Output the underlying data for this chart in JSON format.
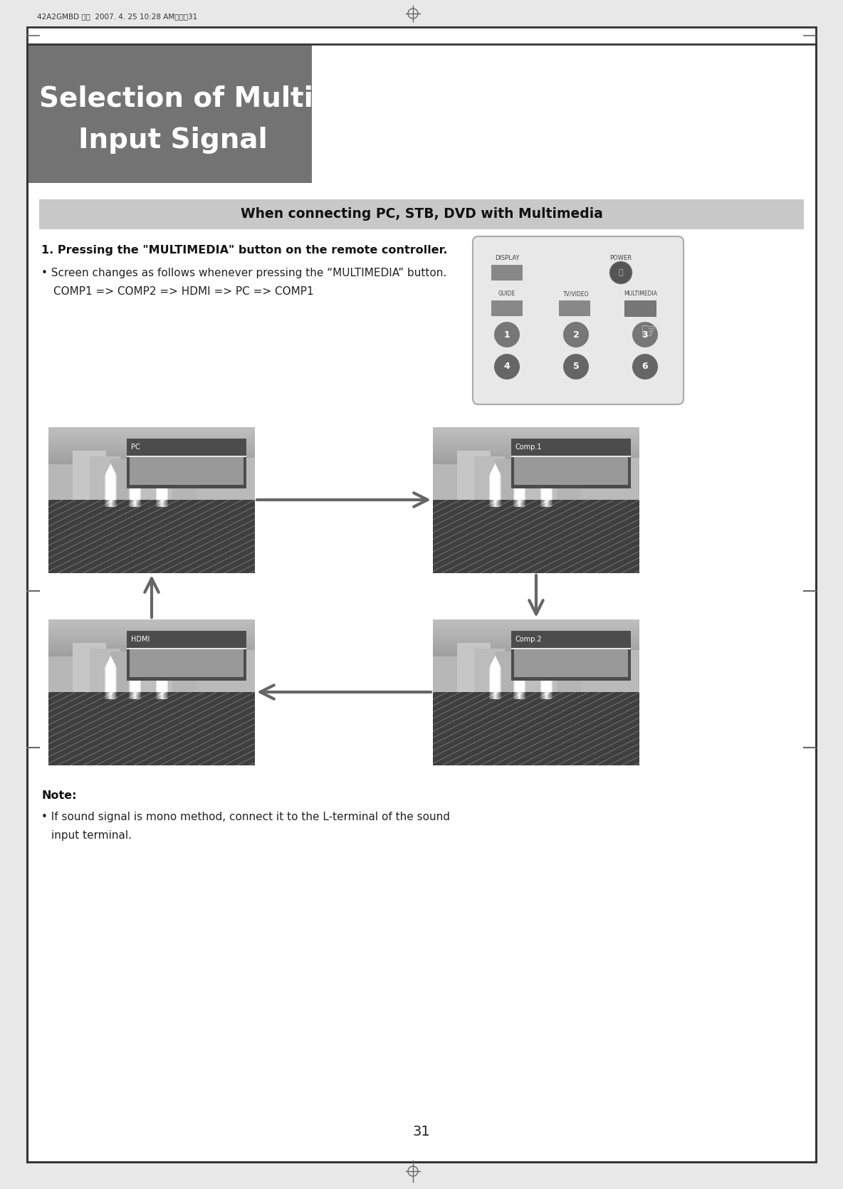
{
  "page_bg": "#e8e8e8",
  "inner_bg": "#ffffff",
  "header_text": "42A2GMBD 영어  2007. 4. 25 10:28 AM페이지31",
  "title_bg": "#737373",
  "title_line1": "Selection of Multimedia",
  "title_line2": "Input Signal",
  "title_text_color": "#ffffff",
  "section_bar_bg": "#c8c8c8",
  "section_bar_text": "When connecting PC, STB, DVD with Multimedia",
  "body_bold": "1. Pressing the \"MULTIMEDIA\" button on the remote controller.",
  "body_bullet": "• Screen changes as follows whenever pressing the “MULTIMEDIA” button.",
  "body_indent": "COMP1 => COMP2 => HDMI => PC => COMP1",
  "note_title": "Note:",
  "note_bullet": "• If sound signal is mono method, connect it to the L-terminal of the sound",
  "note_indent": "input terminal.",
  "page_number": "31",
  "screen_labels": [
    "PC",
    "Comp.1",
    "HDMI",
    "Comp.2"
  ],
  "arrow_color": "#666666"
}
